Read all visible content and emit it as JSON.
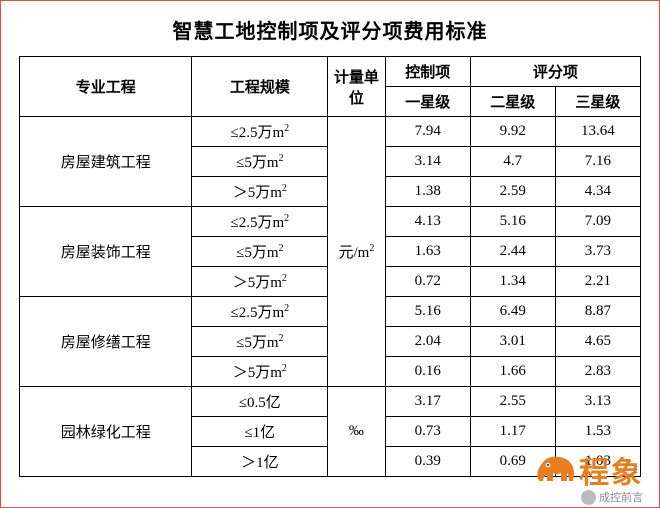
{
  "title": "智慧工地控制项及评分项费用标准",
  "headers": {
    "project": "专业工程",
    "scale": "工程规模",
    "unit": "计量单位",
    "control": "控制项",
    "score": "评分项",
    "one_star": "一星级",
    "two_star": "二星级",
    "three_star": "三星级"
  },
  "units": {
    "sqm": "元/m²",
    "permille": "‰"
  },
  "groups": [
    {
      "name": "房屋建筑工程",
      "unit_key": "sqm",
      "rows": [
        {
          "scale": "≤2.5万m²",
          "control": "7.94",
          "s2": "9.92",
          "s3": "13.64"
        },
        {
          "scale": "≤5万m²",
          "control": "3.14",
          "s2": "4.7",
          "s3": "7.16"
        },
        {
          "scale": "＞5万m²",
          "control": "1.38",
          "s2": "2.59",
          "s3": "4.34"
        }
      ]
    },
    {
      "name": "房屋装饰工程",
      "unit_key": "sqm",
      "rows": [
        {
          "scale": "≤2.5万m²",
          "control": "4.13",
          "s2": "5.16",
          "s3": "7.09"
        },
        {
          "scale": "≤5万m²",
          "control": "1.63",
          "s2": "2.44",
          "s3": "3.73"
        },
        {
          "scale": "＞5万m²",
          "control": "0.72",
          "s2": "1.34",
          "s3": "2.21"
        }
      ]
    },
    {
      "name": "房屋修缮工程",
      "unit_key": "sqm",
      "rows": [
        {
          "scale": "≤2.5万m²",
          "control": "5.16",
          "s2": "6.49",
          "s3": "8.87"
        },
        {
          "scale": "≤5万m²",
          "control": "2.04",
          "s2": "3.01",
          "s3": "4.65"
        },
        {
          "scale": "＞5万m²",
          "control": "0.16",
          "s2": "1.66",
          "s3": "2.83"
        }
      ]
    },
    {
      "name": "园林绿化工程",
      "unit_key": "permille",
      "rows": [
        {
          "scale": "≤0.5亿",
          "control": "3.17",
          "s2": "2.55",
          "s3": "3.13"
        },
        {
          "scale": "≤1亿",
          "control": "0.73",
          "s2": "1.17",
          "s3": "1.53"
        },
        {
          "scale": "＞1亿",
          "control": "0.39",
          "s2": "0.69",
          "s3": "1.03"
        }
      ]
    }
  ],
  "watermark": {
    "brand": "程象",
    "subtitle": "成控前言"
  },
  "colors": {
    "page_border": "#e74c3c",
    "cell_border": "#000000",
    "text": "#000000",
    "watermark_orange": "#e67e22",
    "watermark_grey": "#888888"
  }
}
